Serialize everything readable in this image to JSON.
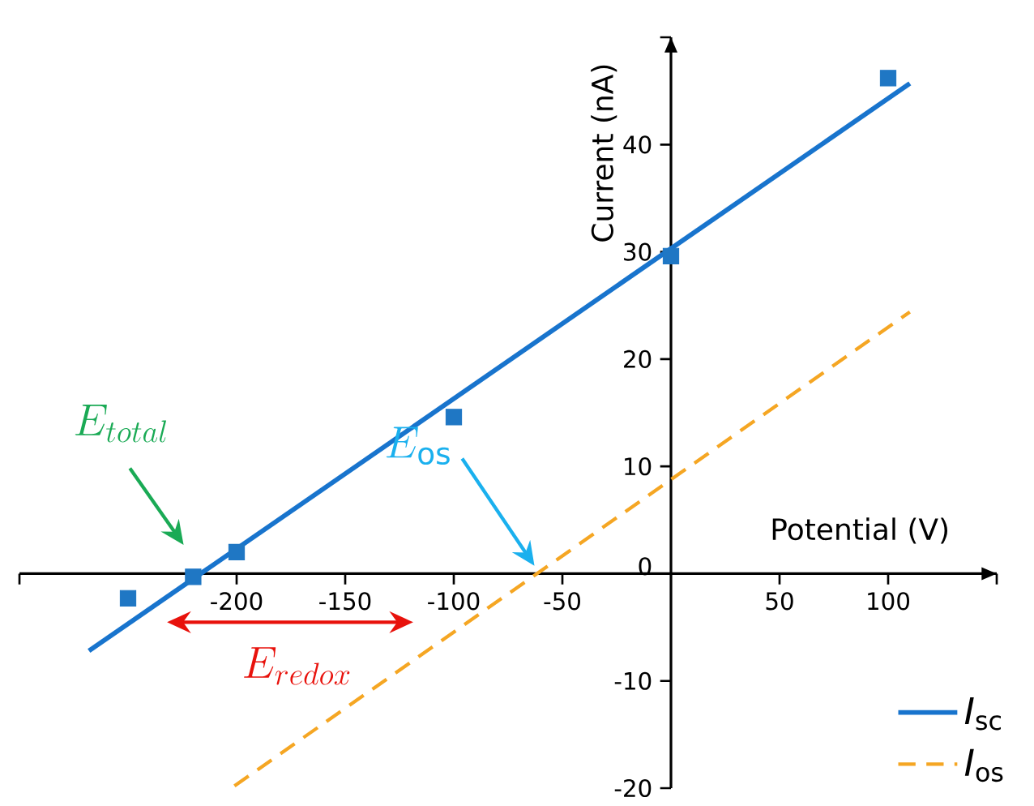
{
  "chart_data": {
    "type": "scatter",
    "xlabel": "Potential (V)",
    "ylabel": "Current (nA)",
    "xlim": [
      -300,
      150
    ],
    "ylim": [
      -20,
      50
    ],
    "xticks": [
      {
        "value": -300,
        "label": null
      },
      -200,
      -150,
      -100,
      -50,
      50,
      100,
      {
        "value": 150,
        "label": null
      }
    ],
    "yticks": [
      -20,
      -10,
      0,
      10,
      20,
      30,
      40,
      {
        "value": 50,
        "label": null
      }
    ],
    "legend": "bottom right",
    "grid": false,
    "series": [
      {
        "marker": "square",
        "color": "#1f77c4",
        "x": [
          -250,
          -220,
          -200,
          -100,
          0,
          100
        ],
        "values": [
          -2.3,
          -0.3,
          2.0,
          14.6,
          29.6,
          46.2
        ]
      },
      {
        "type": "line",
        "name": "*I*$_{sc}$",
        "color": "#1874cd",
        "line_style": "solid",
        "x": [
          -268,
          110
        ],
        "values": [
          -7.2,
          45.7
        ]
      },
      {
        "type": "line",
        "name": "*I*$_{os}$",
        "color": "#f5a623",
        "line_style": "dashed",
        "x": [
          -201,
          110
        ],
        "values": [
          -19.8,
          24.4
        ]
      }
    ],
    "annotations": [
      "E_{total}",
      "E_{\\mathrm{os}}",
      "E_{redox}"
    ]
  }
}
